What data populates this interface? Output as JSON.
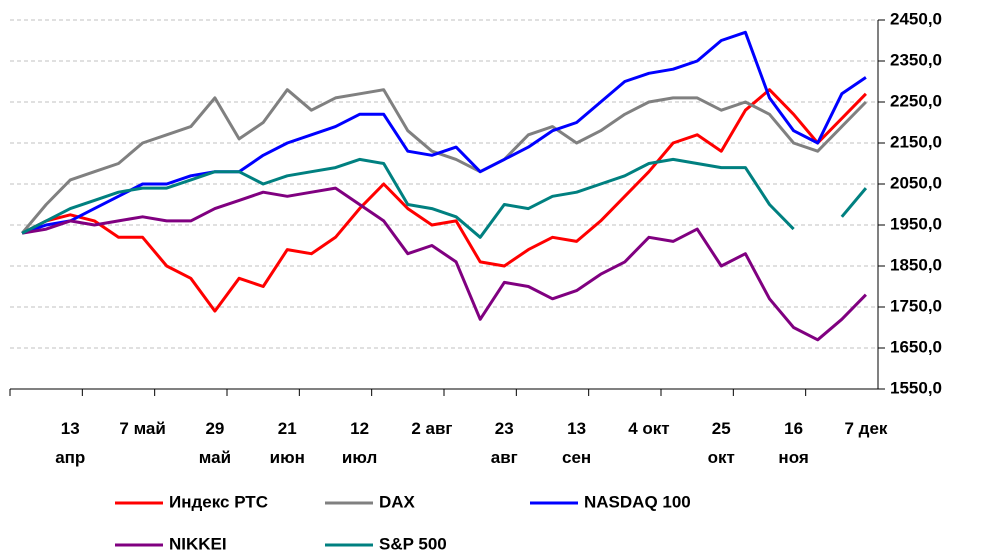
{
  "chart_data": {
    "type": "line",
    "categories": [
      null,
      null,
      "13\nапр",
      null,
      null,
      "7 май",
      null,
      null,
      "29\nмай",
      null,
      null,
      "21\nиюн",
      null,
      null,
      "12\nиюл",
      null,
      null,
      "2 авг",
      null,
      null,
      "23\nавг",
      null,
      null,
      "13\nсен",
      null,
      null,
      "4 окт",
      null,
      null,
      "25\nокт",
      null,
      null,
      "16\nноя",
      null,
      null,
      "7 дек"
    ],
    "series": [
      {
        "name": "Индекс РТС",
        "color": "#ff0000",
        "values": [
          1930,
          1960,
          1975,
          1960,
          1920,
          1920,
          1850,
          1820,
          1740,
          1820,
          1800,
          1890,
          1880,
          1920,
          1990,
          2050,
          1990,
          1950,
          1960,
          1860,
          1850,
          1890,
          1920,
          1910,
          1960,
          2020,
          2080,
          2150,
          2170,
          2130,
          2230,
          2280,
          2220,
          2150,
          2210,
          2270
        ]
      },
      {
        "name": "DAX",
        "color": "#808080",
        "values": [
          1930,
          2000,
          2060,
          2080,
          2100,
          2150,
          2170,
          2190,
          2260,
          2160,
          2200,
          2280,
          2230,
          2260,
          2270,
          2280,
          2180,
          2130,
          2110,
          2080,
          2110,
          2170,
          2190,
          2150,
          2180,
          2220,
          2250,
          2260,
          2260,
          2230,
          2250,
          2220,
          2150,
          2130,
          2190,
          2250
        ]
      },
      {
        "name": "NASDAQ 100",
        "color": "#0000ff",
        "values": [
          1930,
          1950,
          1960,
          1990,
          2020,
          2050,
          2050,
          2070,
          2080,
          2080,
          2120,
          2150,
          2170,
          2190,
          2220,
          2220,
          2130,
          2120,
          2140,
          2080,
          2110,
          2140,
          2180,
          2200,
          2250,
          2300,
          2320,
          2330,
          2350,
          2400,
          2420,
          2260,
          2180,
          2150,
          2270,
          2310
        ]
      },
      {
        "name": "NIKKEI",
        "color": "#800080",
        "values": [
          1930,
          1940,
          1960,
          1950,
          1960,
          1970,
          1960,
          1960,
          1990,
          2010,
          2030,
          2020,
          2030,
          2040,
          2000,
          1960,
          1880,
          1900,
          1860,
          1720,
          1810,
          1800,
          1770,
          1790,
          1830,
          1860,
          1920,
          1910,
          1940,
          1850,
          1880,
          1770,
          1700,
          1670,
          1720,
          1780
        ]
      },
      {
        "name": "S&P 500",
        "color": "#008080",
        "values": [
          1930,
          1960,
          1990,
          2010,
          2030,
          2040,
          2040,
          2060,
          2080,
          2080,
          2050,
          2070,
          2080,
          2090,
          2110,
          2100,
          2000,
          1990,
          1970,
          1920,
          2000,
          1990,
          2020,
          2030,
          2050,
          2070,
          2100,
          2110,
          2100,
          2090,
          2090,
          2000,
          1940,
          null,
          1970,
          2040
        ]
      }
    ],
    "ylim": [
      1550,
      2450
    ],
    "yticks": [
      {
        "value": 1550,
        "label": "1550,0"
      },
      {
        "value": 1650,
        "label": "1650,0"
      },
      {
        "value": 1750,
        "label": "1750,0"
      },
      {
        "value": 1850,
        "label": "1850,0"
      },
      {
        "value": 1950,
        "label": "1950,0"
      },
      {
        "value": 2050,
        "label": "2050,0"
      },
      {
        "value": 2150,
        "label": "2150,0"
      },
      {
        "value": 2250,
        "label": "2250,0"
      },
      {
        "value": 2350,
        "label": "2350,0"
      },
      {
        "value": 2450,
        "label": "2450,0"
      }
    ],
    "grid": true
  }
}
